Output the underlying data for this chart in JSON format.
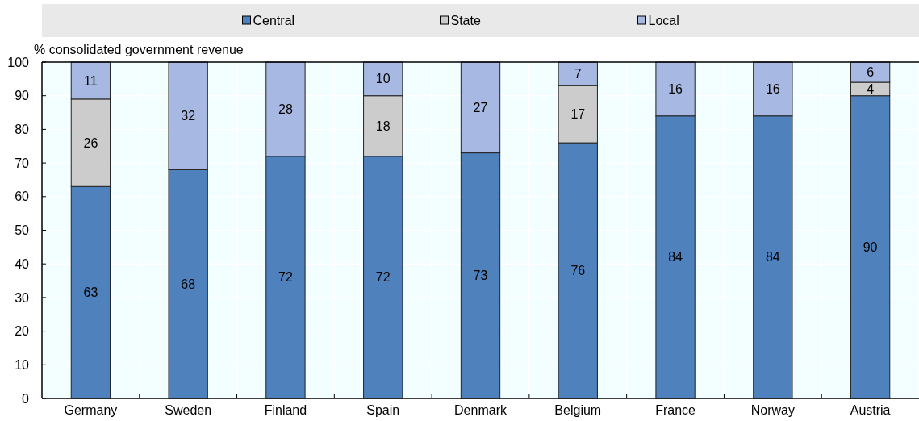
{
  "chart_data": {
    "type": "bar",
    "stacked": true,
    "ylabel": "% consolidated government revenue",
    "categories": [
      "Germany",
      "Sweden",
      "Finland",
      "Spain",
      "Denmark",
      "Belgium",
      "France",
      "Norway",
      "Austria"
    ],
    "series": [
      {
        "name": "Central",
        "color": "#4f81bd",
        "values": [
          63,
          68,
          72,
          72,
          73,
          76,
          84,
          84,
          90
        ]
      },
      {
        "name": "State",
        "color": "#cccccc",
        "values": [
          26,
          null,
          null,
          18,
          null,
          17,
          null,
          null,
          4
        ]
      },
      {
        "name": "Local",
        "color": "#a7b9e3",
        "values": [
          11,
          32,
          28,
          10,
          27,
          7,
          16,
          16,
          6
        ]
      }
    ],
    "ylim": [
      0,
      100
    ],
    "yticks": [
      0,
      10,
      20,
      30,
      40,
      50,
      60,
      70,
      80,
      90,
      100
    ],
    "grid": true,
    "legend": "top",
    "data_labels": true
  }
}
